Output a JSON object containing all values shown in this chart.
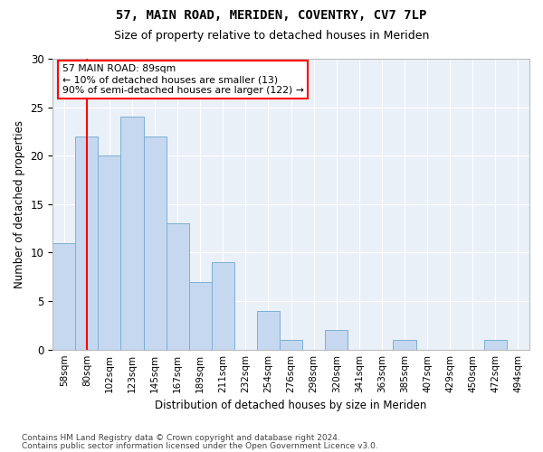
{
  "title1": "57, MAIN ROAD, MERIDEN, COVENTRY, CV7 7LP",
  "title2": "Size of property relative to detached houses in Meriden",
  "xlabel": "Distribution of detached houses by size in Meriden",
  "ylabel": "Number of detached properties",
  "categories": [
    "58sqm",
    "80sqm",
    "102sqm",
    "123sqm",
    "145sqm",
    "167sqm",
    "189sqm",
    "211sqm",
    "232sqm",
    "254sqm",
    "276sqm",
    "298sqm",
    "320sqm",
    "341sqm",
    "363sqm",
    "385sqm",
    "407sqm",
    "429sqm",
    "450sqm",
    "472sqm",
    "494sqm"
  ],
  "values": [
    11,
    22,
    20,
    24,
    22,
    13,
    7,
    9,
    0,
    4,
    1,
    0,
    2,
    0,
    0,
    1,
    0,
    0,
    0,
    1,
    0
  ],
  "bar_color": "#c5d8f0",
  "bar_edge_color": "#7bafd4",
  "annotation_text": "57 MAIN ROAD: 89sqm\n← 10% of detached houses are smaller (13)\n90% of semi-detached houses are larger (122) →",
  "annotation_box_color": "white",
  "annotation_box_edge_color": "red",
  "vline_x": 1,
  "vline_color": "red",
  "ylim": [
    0,
    30
  ],
  "yticks": [
    0,
    5,
    10,
    15,
    20,
    25,
    30
  ],
  "background_color": "#eaf0f8",
  "footer1": "Contains HM Land Registry data © Crown copyright and database right 2024.",
  "footer2": "Contains public sector information licensed under the Open Government Licence v3.0."
}
